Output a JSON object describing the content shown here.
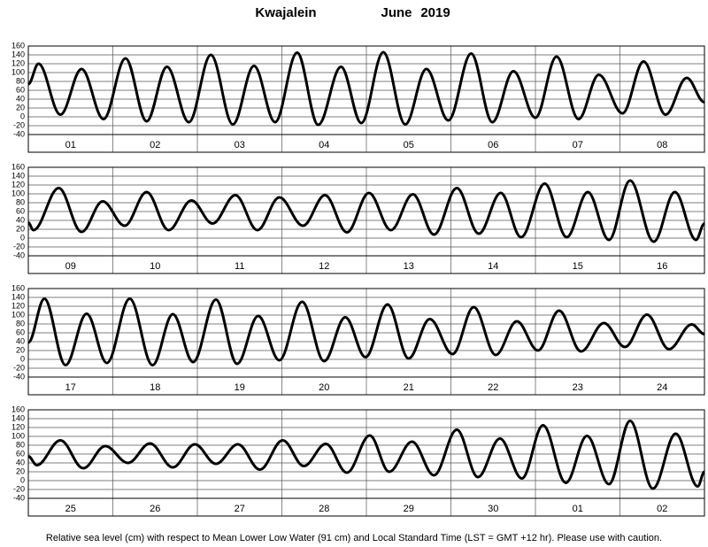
{
  "header": {
    "place": "Kwajalein",
    "month": "June",
    "year": "2019"
  },
  "footnote": "Relative sea level (cm) with respect to Mean Lower Low Water (91 cm) and Local Standard Time (LST = GMT +12 hr). Please use with caution.",
  "chart_data": [
    {
      "type": "line",
      "color": "#000000",
      "grid": true,
      "categories": [
        "01",
        "02",
        "03",
        "04",
        "05",
        "06",
        "07",
        "08"
      ],
      "xlim": [
        0,
        8
      ],
      "ylim": [
        -40,
        160
      ],
      "yticks": [
        -40,
        -20,
        0,
        20,
        40,
        60,
        80,
        100,
        120,
        140,
        160
      ],
      "x": [
        0,
        0.12,
        0.38,
        0.63,
        0.89,
        1.15,
        1.4,
        1.64,
        1.9,
        2.16,
        2.42,
        2.67,
        2.92,
        3.18,
        3.43,
        3.7,
        3.94,
        4.2,
        4.46,
        4.71,
        4.97,
        5.24,
        5.49,
        5.74,
        6.0,
        6.25,
        6.51,
        6.75,
        7.03,
        7.28,
        7.54,
        7.79,
        8
      ],
      "values": [
        74,
        120,
        5,
        108,
        -5,
        132,
        -10,
        113,
        -12,
        140,
        -17,
        115,
        -12,
        145,
        -18,
        113,
        -14,
        146,
        -17,
        108,
        -8,
        143,
        -12,
        103,
        -2,
        136,
        -5,
        95,
        8,
        125,
        5,
        88,
        33
      ]
    },
    {
      "type": "line",
      "color": "#000000",
      "grid": true,
      "categories": [
        "09",
        "10",
        "11",
        "12",
        "13",
        "14",
        "15",
        "16"
      ],
      "xlim": [
        0,
        8
      ],
      "ylim": [
        -40,
        160
      ],
      "yticks": [
        -40,
        -20,
        0,
        20,
        40,
        60,
        80,
        100,
        120,
        140,
        160
      ],
      "x": [
        0,
        0.06,
        0.36,
        0.63,
        0.88,
        1.14,
        1.4,
        1.66,
        1.93,
        2.18,
        2.45,
        2.71,
        2.97,
        3.25,
        3.51,
        3.77,
        4.03,
        4.29,
        4.55,
        4.8,
        5.07,
        5.33,
        5.59,
        5.83,
        6.11,
        6.37,
        6.62,
        6.87,
        7.12,
        7.4,
        7.65,
        7.9,
        8
      ],
      "values": [
        35,
        18,
        113,
        14,
        83,
        28,
        104,
        18,
        85,
        33,
        97,
        18,
        92,
        28,
        97,
        13,
        102,
        18,
        99,
        8,
        113,
        10,
        102,
        2,
        123,
        2,
        104,
        -4,
        130,
        -8,
        104,
        -4,
        33
      ]
    },
    {
      "type": "line",
      "color": "#000000",
      "grid": true,
      "categories": [
        "17",
        "18",
        "19",
        "20",
        "21",
        "22",
        "23",
        "24"
      ],
      "xlim": [
        0,
        8
      ],
      "ylim": [
        -40,
        160
      ],
      "yticks": [
        -40,
        -20,
        0,
        20,
        40,
        60,
        80,
        100,
        120,
        140,
        160
      ],
      "x": [
        0,
        0.19,
        0.44,
        0.69,
        0.93,
        1.2,
        1.47,
        1.71,
        1.95,
        2.22,
        2.47,
        2.72,
        2.97,
        3.24,
        3.5,
        3.75,
        3.99,
        4.25,
        4.5,
        4.75,
        5.02,
        5.27,
        5.53,
        5.78,
        6.03,
        6.28,
        6.54,
        6.81,
        7.06,
        7.32,
        7.58,
        7.85,
        8
      ],
      "values": [
        38,
        137,
        -13,
        103,
        -8,
        137,
        -13,
        102,
        -6,
        135,
        -10,
        98,
        -2,
        130,
        -4,
        95,
        5,
        124,
        2,
        91,
        12,
        118,
        10,
        86,
        20,
        110,
        18,
        82,
        28,
        101,
        23,
        79,
        57
      ]
    },
    {
      "type": "line",
      "color": "#000000",
      "grid": true,
      "categories": [
        "25",
        "26",
        "27",
        "28",
        "29",
        "30",
        "01",
        "02"
      ],
      "xlim": [
        0,
        8
      ],
      "ylim": [
        -40,
        160
      ],
      "yticks": [
        -40,
        -20,
        0,
        20,
        40,
        60,
        80,
        100,
        120,
        140,
        160
      ],
      "x": [
        0,
        0.1,
        0.38,
        0.65,
        0.91,
        1.18,
        1.44,
        1.71,
        1.97,
        2.22,
        2.48,
        2.74,
        3.01,
        3.26,
        3.52,
        3.77,
        4.04,
        4.27,
        4.54,
        4.8,
        5.07,
        5.32,
        5.58,
        5.84,
        6.09,
        6.36,
        6.61,
        6.87,
        7.12,
        7.39,
        7.66,
        7.92,
        8
      ],
      "values": [
        55,
        35,
        91,
        28,
        78,
        40,
        84,
        30,
        82,
        38,
        82,
        25,
        91,
        33,
        83,
        18,
        102,
        20,
        88,
        12,
        115,
        8,
        95,
        5,
        125,
        -5,
        101,
        -8,
        135,
        -18,
        106,
        -13,
        20
      ]
    }
  ]
}
